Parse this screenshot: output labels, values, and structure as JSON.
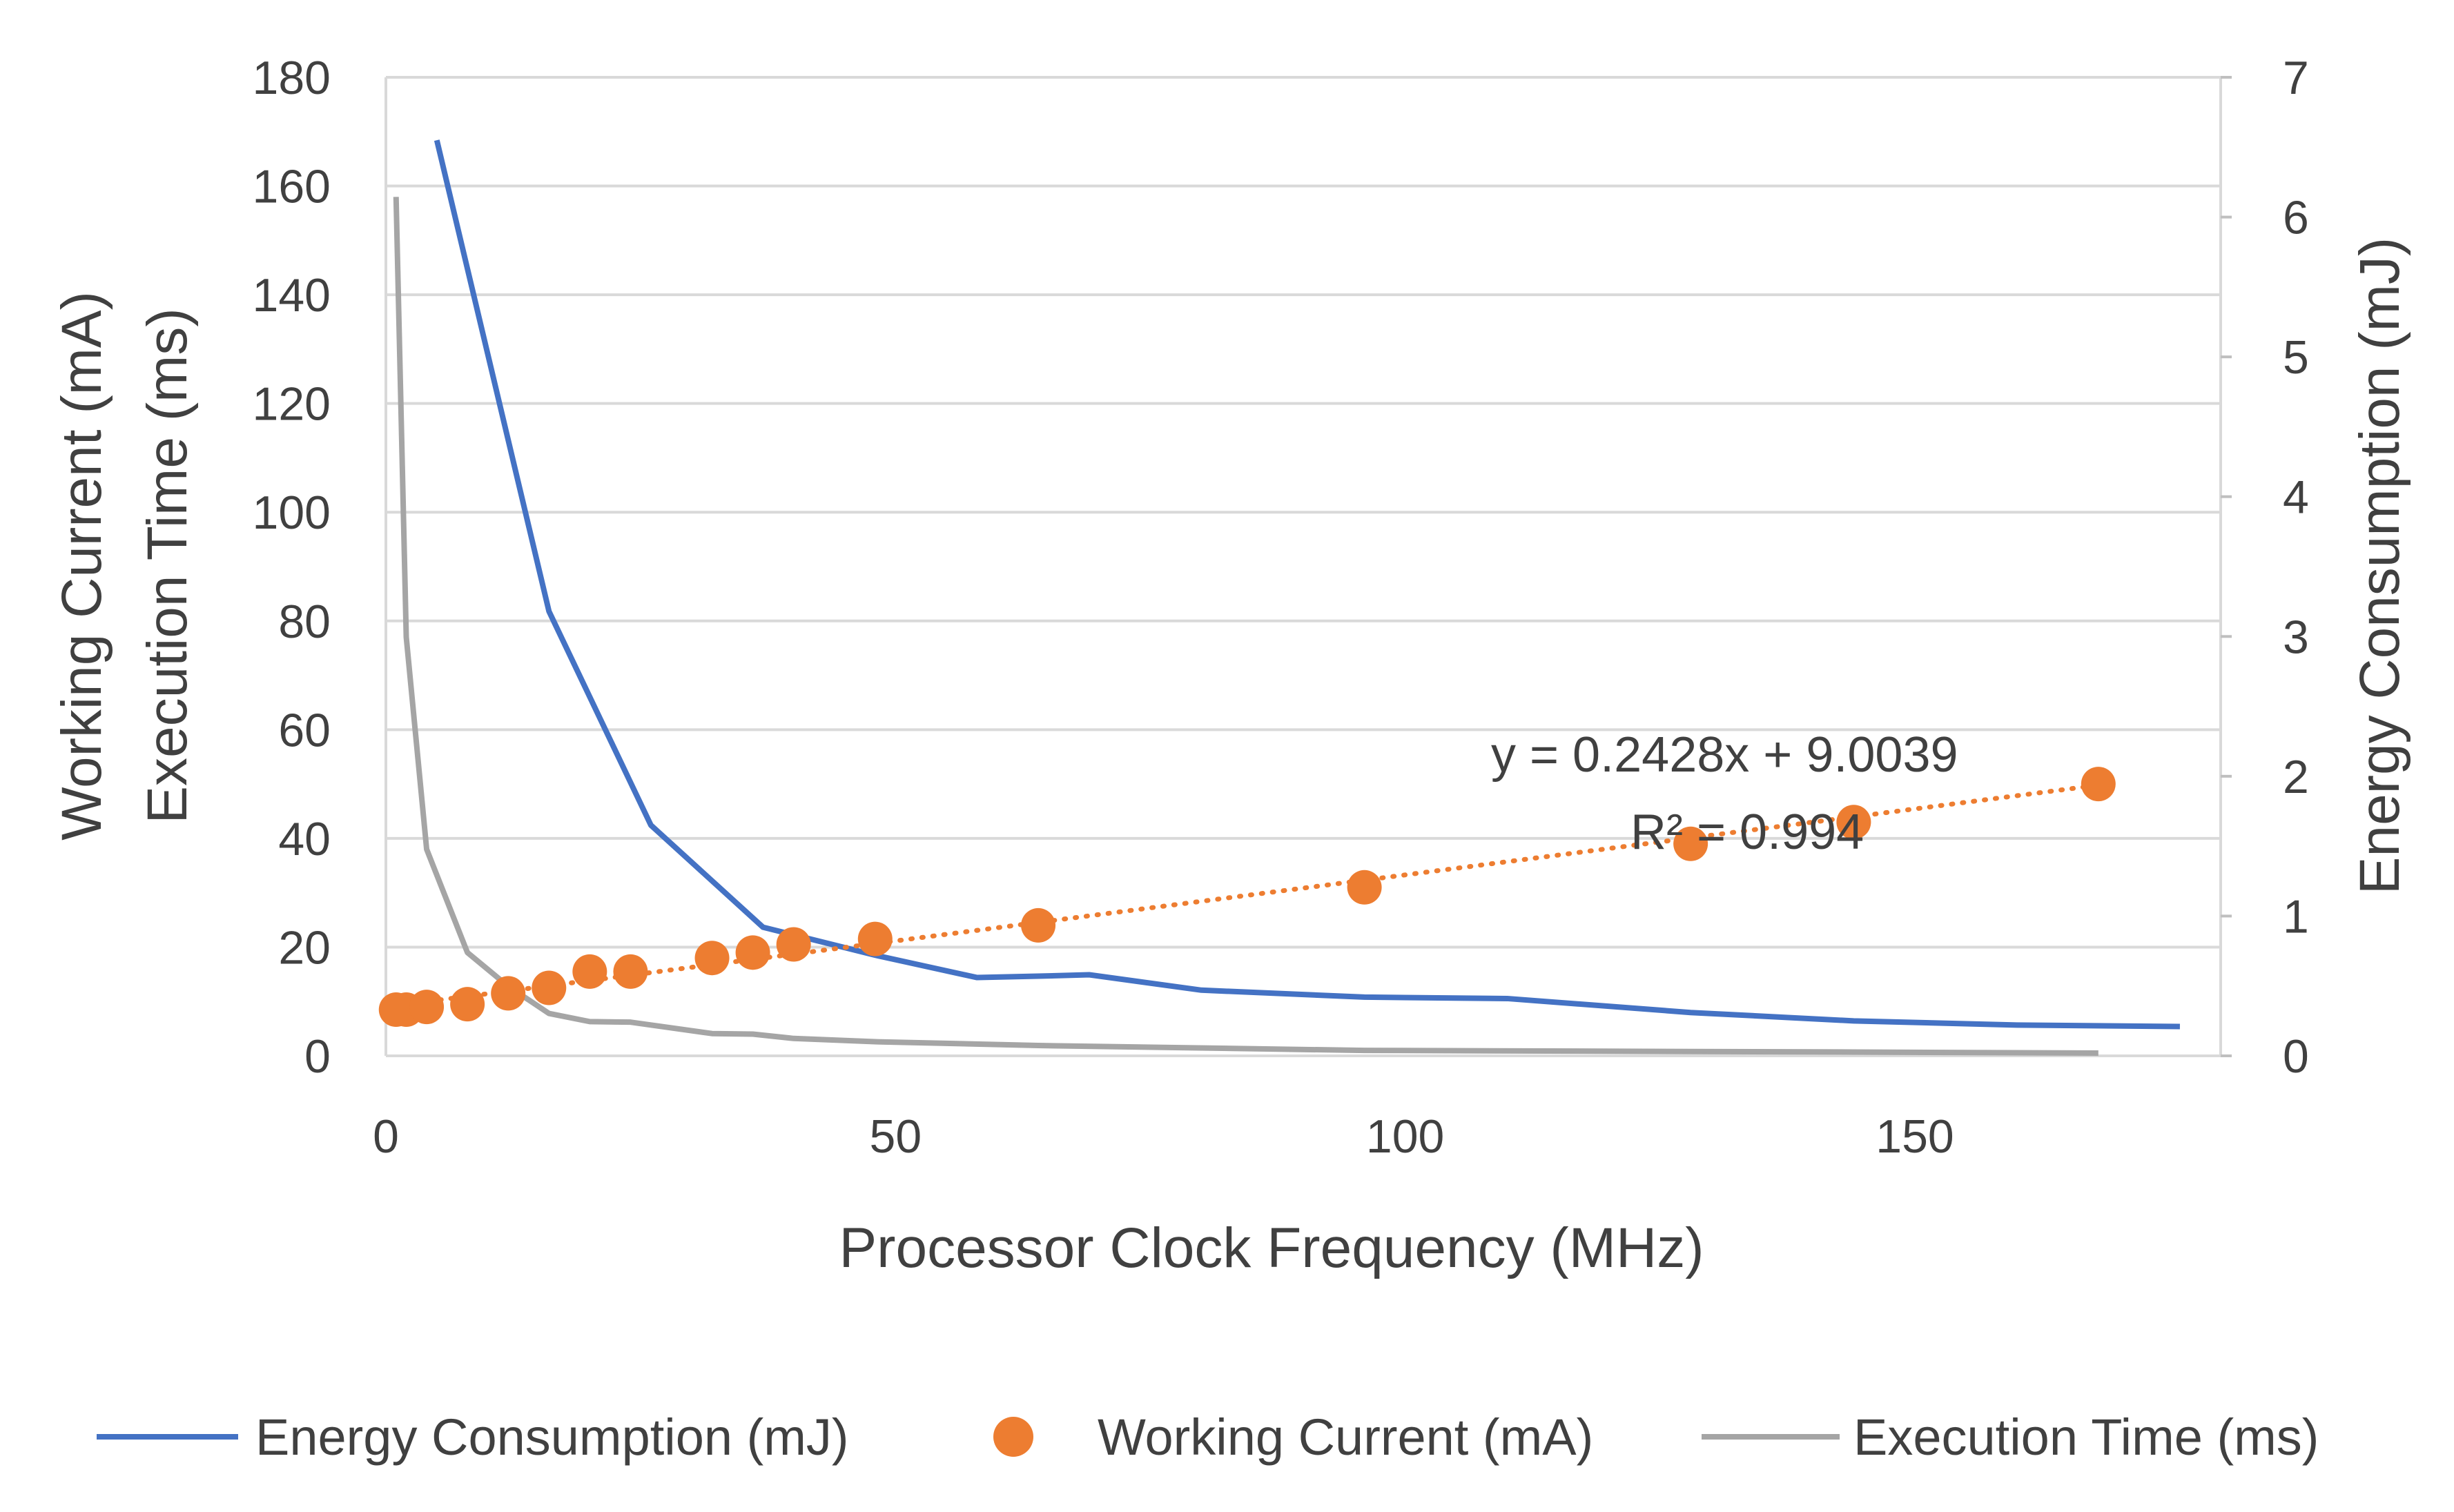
{
  "chart_data": {
    "type": "line",
    "title": "",
    "xlabel": "Processor Clock Frequency (MHz)",
    "ylabel_left": "Working Current (mA)",
    "ylabel_left_line2": "Execution Time (ms)",
    "ylabel_right": "Energy Consumption (mJ)",
    "xlim": [
      0,
      180
    ],
    "ylim_left": [
      0,
      180
    ],
    "ylim_right": [
      0,
      7
    ],
    "x_ticks": [
      0,
      50,
      100,
      150
    ],
    "y_left_ticks": [
      0,
      20,
      40,
      60,
      80,
      100,
      120,
      140,
      160,
      180
    ],
    "y_right_ticks": [
      0,
      1,
      2,
      3,
      4,
      5,
      6,
      7
    ],
    "grid": true,
    "legend_position": "bottom",
    "series": [
      {
        "name": "Energy Consumption (mJ)",
        "axis": "right",
        "style": "line",
        "color": "#4472C4",
        "x": [
          5,
          16,
          26,
          37,
          48,
          58,
          64,
          69,
          80,
          96,
          110,
          128,
          144,
          160,
          176
        ],
        "y": [
          6.55,
          3.18,
          1.65,
          0.92,
          0.72,
          0.56,
          0.57,
          0.58,
          0.47,
          0.42,
          0.41,
          0.31,
          0.25,
          0.22,
          0.21
        ]
      },
      {
        "name": "Working Current (mA)",
        "axis": "left",
        "style": "scatter",
        "color": "#ED7D31",
        "x": [
          1,
          2,
          4,
          8,
          12,
          16,
          20,
          24,
          32,
          36,
          40,
          48,
          64,
          96,
          128,
          144,
          168
        ],
        "y": [
          8.5,
          8.5,
          9.0,
          9.5,
          11.5,
          12.5,
          15.5,
          15.5,
          18,
          19,
          20.5,
          21.5,
          24,
          31,
          39,
          43,
          50
        ]
      },
      {
        "name": "Execution Time (ms)",
        "axis": "left",
        "style": "line",
        "color": "#A5A5A5",
        "x": [
          1,
          2,
          4,
          8,
          12,
          16,
          20,
          24,
          32,
          36,
          40,
          48,
          64,
          96,
          128,
          144,
          168
        ],
        "y": [
          158,
          77,
          38,
          19,
          12.8,
          7.8,
          6.3,
          6.2,
          4.1,
          4.0,
          3.2,
          2.6,
          1.9,
          1.0,
          0.8,
          0.7,
          0.5
        ]
      }
    ],
    "trendline": {
      "series": "Working Current (mA)",
      "type": "linear",
      "slope": 0.2428,
      "intercept": 9.0039,
      "x_range": [
        1,
        168
      ],
      "color": "#ED7D31",
      "equation_text": "y = 0.2428x + 9.0039",
      "r2_text": "R² = 0.994"
    }
  }
}
